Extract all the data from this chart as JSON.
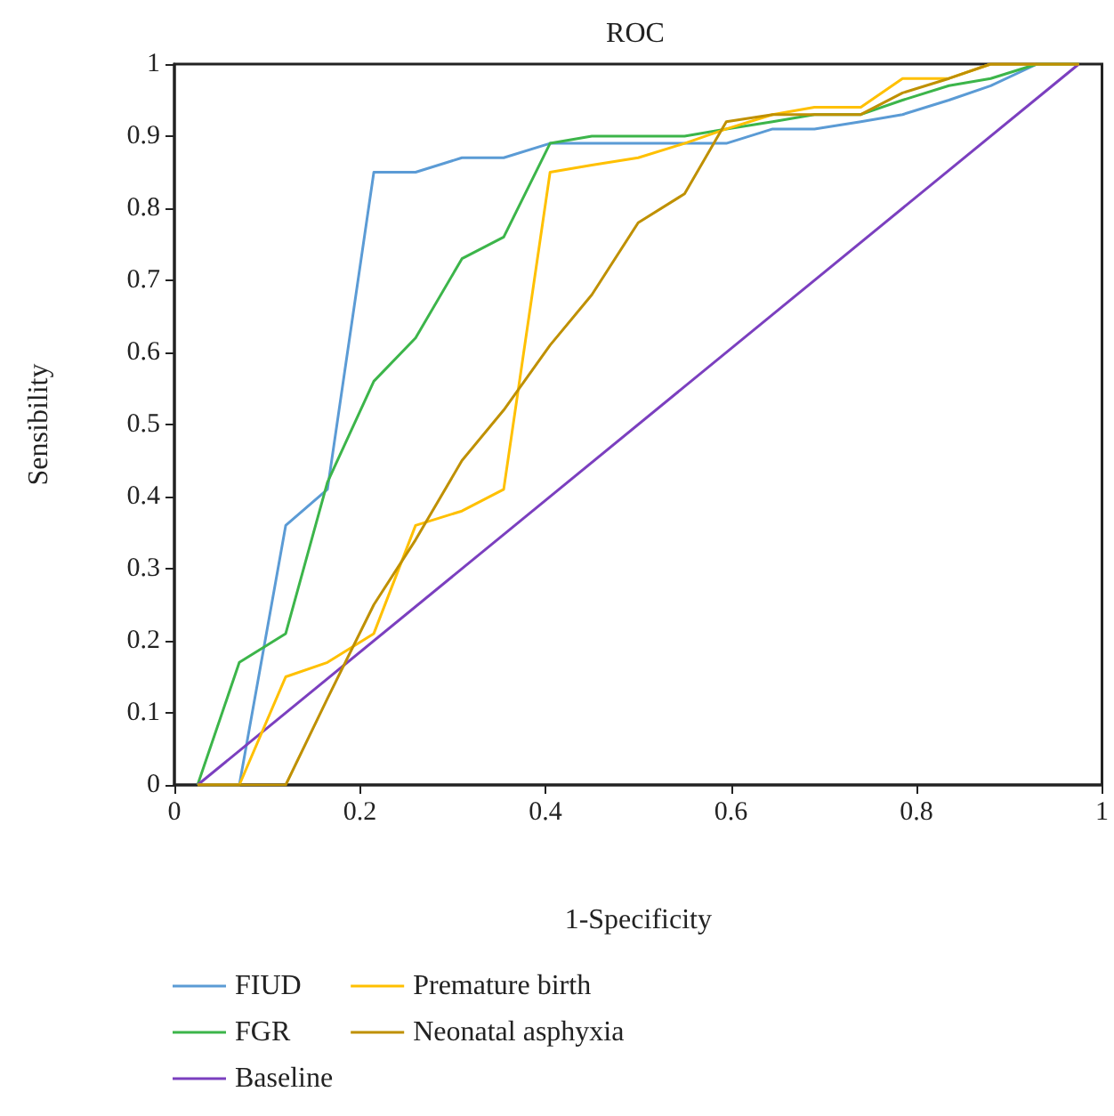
{
  "chart_data": {
    "type": "line",
    "title": "ROC",
    "xlabel": "1-Specificity",
    "ylabel": "Sensibility",
    "x": [
      0.025,
      0.07,
      0.12,
      0.165,
      0.215,
      0.26,
      0.31,
      0.355,
      0.405,
      0.45,
      0.5,
      0.55,
      0.595,
      0.645,
      0.69,
      0.74,
      0.785,
      0.835,
      0.88,
      0.93,
      0.975
    ],
    "series": [
      {
        "name": "FIUD",
        "color": "#5b9bd5",
        "values": [
          0,
          0,
          0.36,
          0.41,
          0.85,
          0.85,
          0.87,
          0.87,
          0.89,
          0.89,
          0.89,
          0.89,
          0.89,
          0.91,
          0.91,
          0.92,
          0.93,
          0.95,
          0.97,
          1,
          1
        ]
      },
      {
        "name": "FGR",
        "color": "#3cb54a",
        "values": [
          0,
          0.17,
          0.21,
          0.42,
          0.56,
          0.62,
          0.73,
          0.76,
          0.89,
          0.9,
          0.9,
          0.9,
          0.91,
          0.92,
          0.93,
          0.93,
          0.95,
          0.97,
          0.98,
          1,
          1
        ]
      },
      {
        "name": "Baseline",
        "color": "#7b3fbf",
        "x": [
          0.025,
          0.975
        ],
        "values": [
          0,
          1
        ]
      },
      {
        "name": "Premature birth",
        "color": "#ffc000",
        "values": [
          0,
          0,
          0.15,
          0.17,
          0.21,
          0.36,
          0.38,
          0.41,
          0.85,
          0.86,
          0.87,
          0.89,
          0.91,
          0.93,
          0.94,
          0.94,
          0.98,
          0.98,
          1,
          1,
          1
        ]
      },
      {
        "name": "Neonatal asphyxia",
        "color": "#bf9000",
        "values": [
          0,
          0,
          0,
          0.12,
          0.25,
          0.34,
          0.45,
          0.52,
          0.61,
          0.68,
          0.78,
          0.82,
          0.92,
          0.93,
          0.93,
          0.93,
          0.96,
          0.98,
          1,
          1,
          1
        ]
      }
    ],
    "xlim": [
      0,
      1
    ],
    "xticks": [
      0,
      0.2,
      0.4,
      0.6,
      0.8,
      1
    ],
    "ylim": [
      0,
      1
    ],
    "yticks": [
      0,
      0.1,
      0.2,
      0.3,
      0.4,
      0.5,
      0.6,
      0.7,
      0.8,
      0.9,
      1
    ],
    "grid": false,
    "legend": "bottom",
    "marker": "none",
    "line_style": "solid"
  }
}
